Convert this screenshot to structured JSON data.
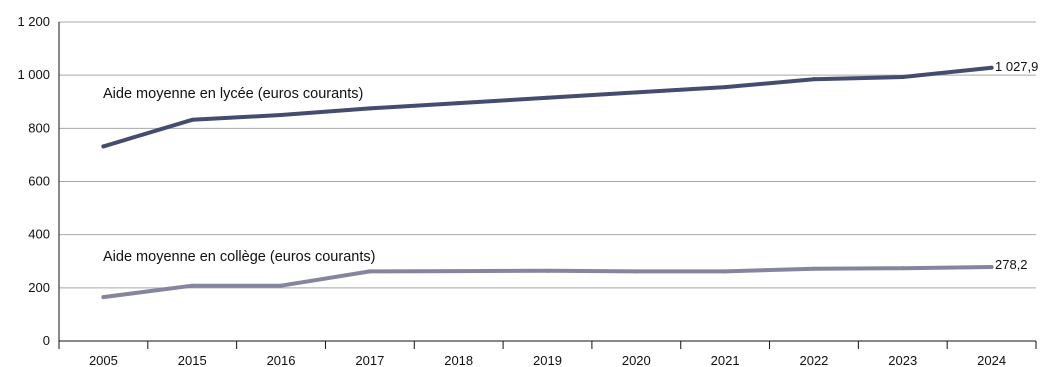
{
  "chart_data": {
    "type": "line",
    "title": "",
    "xlabel": "",
    "ylabel": "",
    "categories": [
      "2005",
      "2015",
      "2016",
      "2017",
      "2018",
      "2019",
      "2020",
      "2021",
      "2022",
      "2023",
      "2024"
    ],
    "ylim": [
      0,
      1200
    ],
    "yticks": [
      0,
      200,
      400,
      600,
      800,
      1000,
      1200
    ],
    "ytick_labels": [
      "0",
      "200",
      "400",
      "600",
      "800",
      "1 000",
      "1 200"
    ],
    "grid": true,
    "legend": "none",
    "series": [
      {
        "name": "Aide moyenne en lycée (euros courants)",
        "color": "#454c6e",
        "values": [
          732,
          832,
          850,
          875,
          895,
          915,
          935,
          955,
          985,
          993,
          1027.9
        ],
        "end_label": "1 027,9"
      },
      {
        "name": "Aide moyenne en collège (euros courants)",
        "color": "#8585a0",
        "values": [
          165,
          208,
          208,
          262,
          263,
          264,
          262,
          262,
          272,
          274,
          278.2
        ],
        "end_label": "278,2"
      }
    ]
  }
}
